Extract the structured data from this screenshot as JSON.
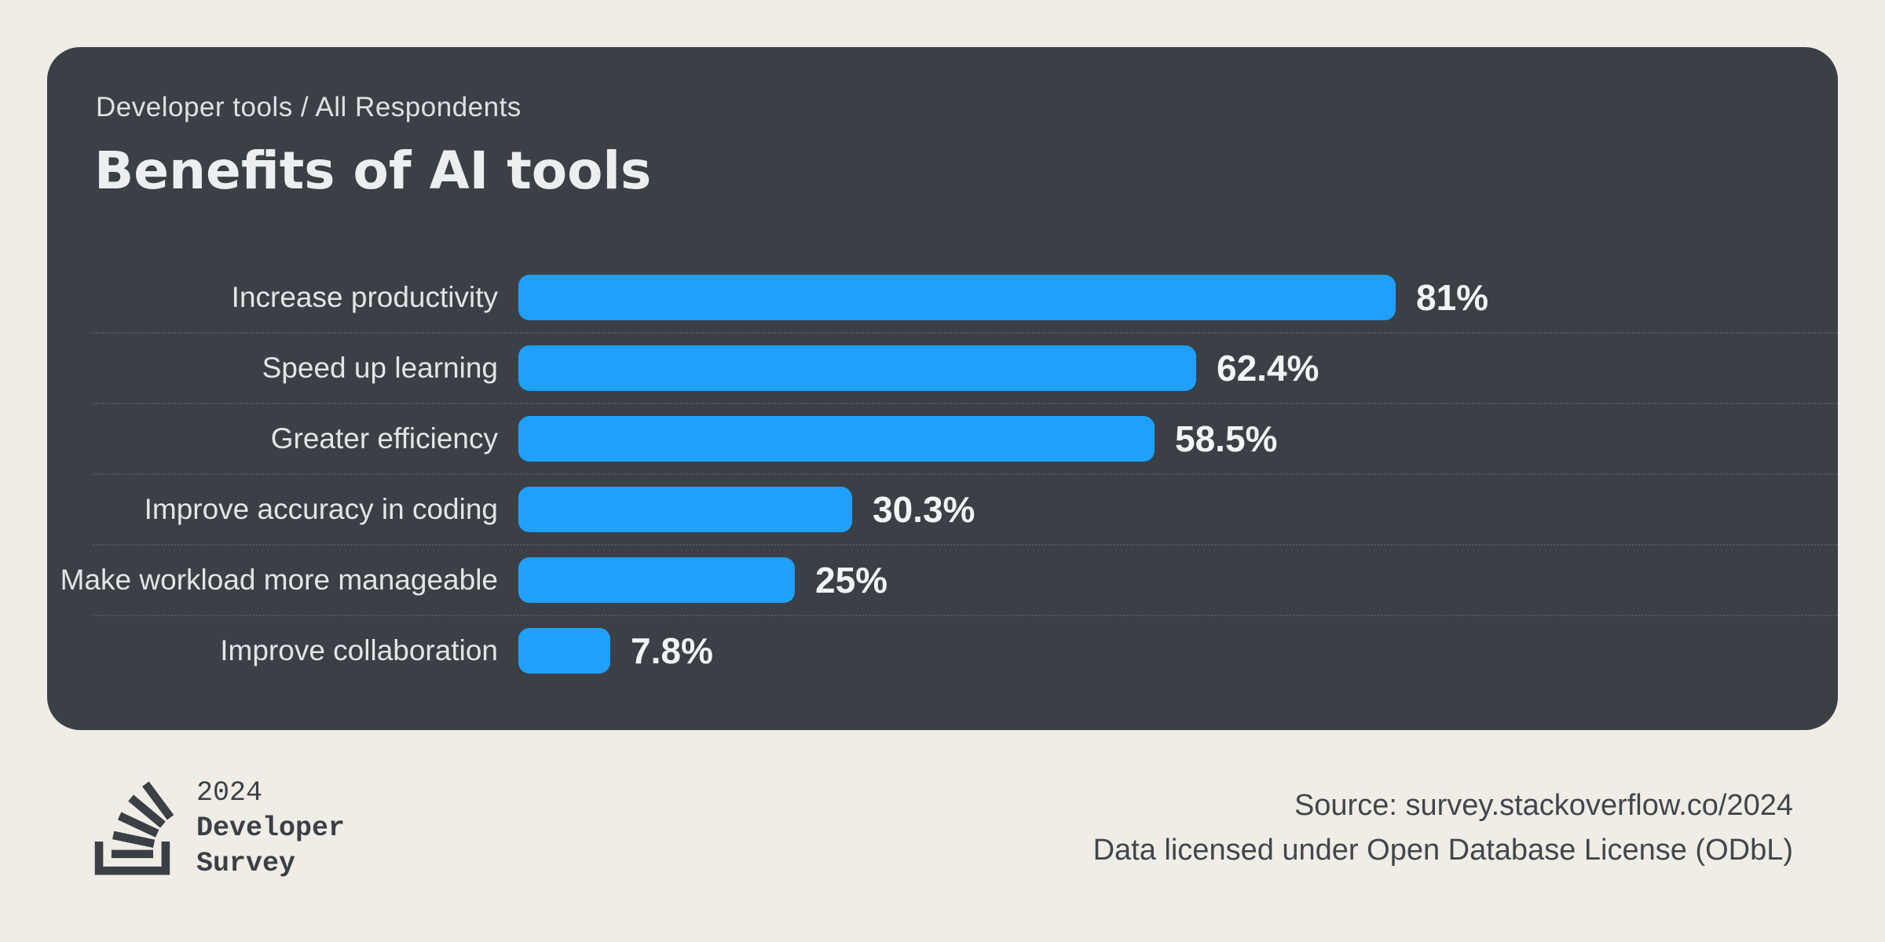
{
  "card": {
    "eyebrow": "Developer tools / All Respondents",
    "title": "Benefits of AI tools",
    "background_color": "#3b4046"
  },
  "chart_data": {
    "type": "bar",
    "orientation": "horizontal",
    "title": "Benefits of AI tools",
    "subtitle": "Developer tools / All Respondents",
    "categories": [
      "Increase productivity",
      "Speed up learning",
      "Greater efficiency",
      "Improve accuracy in coding",
      "Make workload more manageable",
      "Improve collaboration"
    ],
    "values": [
      81,
      62.4,
      58.5,
      30.3,
      25,
      7.8
    ],
    "value_labels": [
      "81%",
      "62.4%",
      "58.5%",
      "30.3%",
      "25%",
      "7.8%"
    ],
    "xlim": [
      0,
      100
    ],
    "bar_color": "#1fa0fc",
    "grid": "dotted horizontal separators between rows",
    "legend": "none"
  },
  "footer": {
    "logo": {
      "icon": "stackoverflow-logo-icon",
      "lines": [
        "2024",
        "Developer",
        "Survey"
      ]
    },
    "source_line1": "Source: survey.stackoverflow.co/2024",
    "source_line2": "Data licensed under Open Database License (ODbL)"
  },
  "colors": {
    "page_background": "#f0ede7",
    "card_background": "#3b4046",
    "bar_blue": "#1fa0fc",
    "text_light": "#eceef0",
    "text_dark": "#3b4046"
  }
}
